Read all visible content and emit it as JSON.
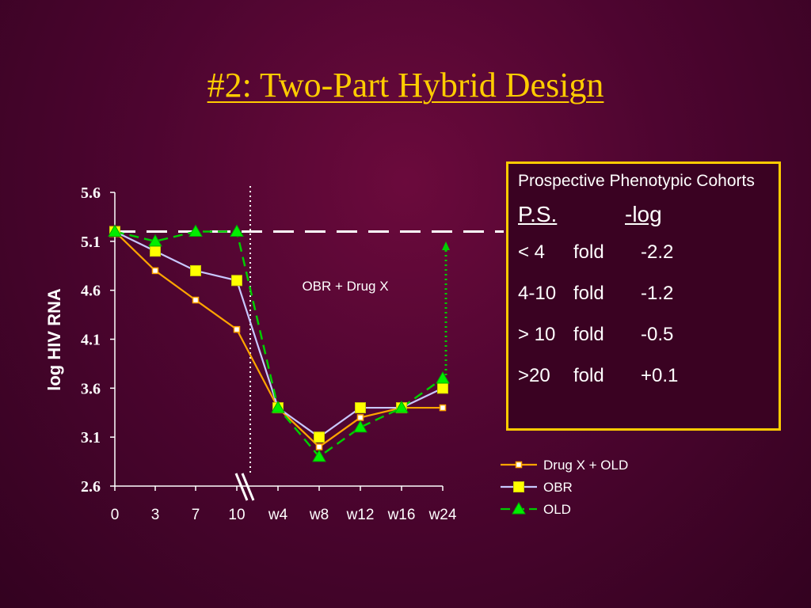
{
  "title": "#2: Two-Part Hybrid Design",
  "annotation": "OBR + Drug X",
  "ps_box": {
    "heading": "Prospective Phenotypic Cohorts",
    "col1": "P.S.",
    "col2": "-log",
    "rows": [
      {
        "ps": "< 4",
        "unit": "fold",
        "log": "-2.2"
      },
      {
        "ps": "4-10",
        "unit": "fold",
        "log": "-1.2"
      },
      {
        "ps": "> 10",
        "unit": "fold",
        "log": "-0.5"
      },
      {
        "ps": ">20",
        "unit": "fold",
        "log": "+0.1"
      }
    ]
  },
  "chart_data": {
    "type": "line",
    "ylabel": "log HIV RNA",
    "ylim": [
      2.6,
      5.6
    ],
    "yticks": [
      "2.6",
      "3.1",
      "3.6",
      "4.1",
      "4.6",
      "5.1",
      "5.6"
    ],
    "categories": [
      "0",
      "3",
      "7",
      "10",
      "w4",
      "w8",
      "w12",
      "w16",
      "w24"
    ],
    "legend_position": "bottom-right",
    "series": [
      {
        "name": "Drug X + OLD",
        "color": "#ffa500",
        "marker": "small-square",
        "values": [
          5.2,
          4.8,
          4.5,
          4.2,
          3.4,
          3.0,
          3.3,
          3.4,
          3.4
        ]
      },
      {
        "name": "OBR",
        "color": "#c8c8ff",
        "marker": "square",
        "values": [
          5.2,
          5.0,
          4.8,
          4.7,
          3.4,
          3.1,
          3.4,
          3.4,
          3.6
        ]
      },
      {
        "name": "OLD",
        "color": "#00cc00",
        "marker": "triangle",
        "values": [
          5.2,
          5.1,
          5.2,
          5.2,
          3.4,
          2.9,
          3.2,
          3.4,
          3.7
        ]
      }
    ],
    "reference_line": 5.2
  }
}
